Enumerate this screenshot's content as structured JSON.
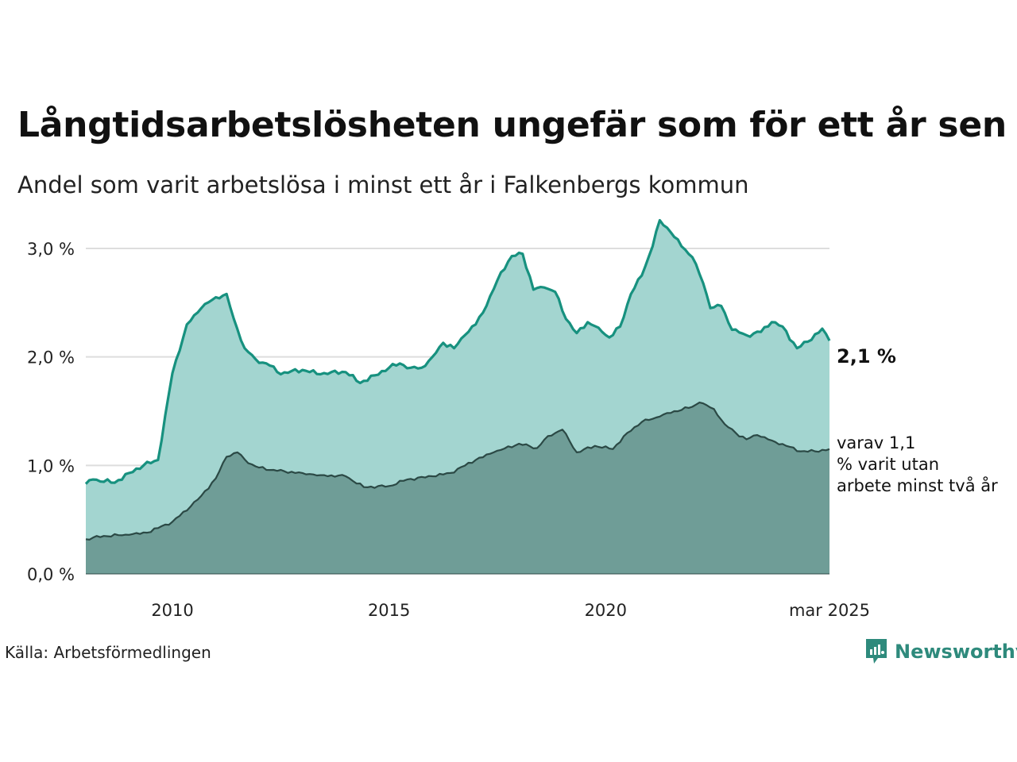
{
  "title": "Långtidsarbetslösheten ungefär som för ett år sen",
  "subtitle": "Andel som varit arbetslösa i minst ett år i Falkenbergs kommun",
  "source": "Källa: Arbetsförmedlingen",
  "brand": "Newsworthy",
  "colors": {
    "upper_fill": "#a3d5d0",
    "upper_line": "#17917f",
    "lower_fill": "#6f9d97",
    "lower_line": "#2b4945",
    "grid": "#dddddd",
    "brand": "#2e8a7c"
  },
  "chart_data": {
    "type": "area",
    "x_start": "2008-01",
    "x_end": "2025-03",
    "x_interval": "month",
    "ylim": [
      0,
      3.3
    ],
    "yticks": [
      0,
      1,
      2,
      3
    ],
    "ytick_labels": [
      "0,0 %",
      "1,0 %",
      "2,0 %",
      "3,0 %"
    ],
    "xtick_labels": [
      "2010",
      "2015",
      "2020",
      "mar 2025"
    ],
    "xtick_dates": [
      "2010-01",
      "2015-01",
      "2020-01",
      "2025-03"
    ],
    "grid": true,
    "series": [
      {
        "end_label": "2,1 %",
        "anchors": [
          [
            "2008-01",
            0.83
          ],
          [
            "2008-03",
            0.87
          ],
          [
            "2008-09",
            0.84
          ],
          [
            "2009-01",
            0.93
          ],
          [
            "2009-05",
            1.0
          ],
          [
            "2009-09",
            1.05
          ],
          [
            "2010-01",
            1.85
          ],
          [
            "2010-05",
            2.3
          ],
          [
            "2010-09",
            2.45
          ],
          [
            "2011-01",
            2.55
          ],
          [
            "2011-04",
            2.58
          ],
          [
            "2011-06",
            2.35
          ],
          [
            "2011-09",
            2.08
          ],
          [
            "2011-12",
            1.98
          ],
          [
            "2012-04",
            1.92
          ],
          [
            "2012-07",
            1.84
          ],
          [
            "2012-10",
            1.87
          ],
          [
            "2013-01",
            1.88
          ],
          [
            "2013-06",
            1.84
          ],
          [
            "2013-09",
            1.86
          ],
          [
            "2014-01",
            1.86
          ],
          [
            "2014-05",
            1.76
          ],
          [
            "2014-09",
            1.83
          ],
          [
            "2015-01",
            1.9
          ],
          [
            "2015-04",
            1.94
          ],
          [
            "2015-07",
            1.9
          ],
          [
            "2015-10",
            1.9
          ],
          [
            "2016-01",
            2.0
          ],
          [
            "2016-04",
            2.13
          ],
          [
            "2016-07",
            2.08
          ],
          [
            "2016-10",
            2.2
          ],
          [
            "2017-01",
            2.3
          ],
          [
            "2017-04",
            2.47
          ],
          [
            "2017-08",
            2.78
          ],
          [
            "2017-11",
            2.93
          ],
          [
            "2018-02",
            2.95
          ],
          [
            "2018-05",
            2.62
          ],
          [
            "2018-08",
            2.64
          ],
          [
            "2018-11",
            2.6
          ],
          [
            "2019-02",
            2.35
          ],
          [
            "2019-05",
            2.22
          ],
          [
            "2019-08",
            2.32
          ],
          [
            "2019-11",
            2.27
          ],
          [
            "2020-02",
            2.18
          ],
          [
            "2020-05",
            2.28
          ],
          [
            "2020-08",
            2.58
          ],
          [
            "2020-11",
            2.75
          ],
          [
            "2021-02",
            3.02
          ],
          [
            "2021-04",
            3.26
          ],
          [
            "2021-07",
            3.15
          ],
          [
            "2021-10",
            3.02
          ],
          [
            "2022-01",
            2.92
          ],
          [
            "2022-04",
            2.68
          ],
          [
            "2022-06",
            2.45
          ],
          [
            "2022-09",
            2.47
          ],
          [
            "2022-12",
            2.25
          ],
          [
            "2023-04",
            2.2
          ],
          [
            "2023-08",
            2.23
          ],
          [
            "2023-11",
            2.32
          ],
          [
            "2024-02",
            2.28
          ],
          [
            "2024-06",
            2.08
          ],
          [
            "2024-09",
            2.14
          ],
          [
            "2025-01",
            2.26
          ],
          [
            "2025-03",
            2.15
          ]
        ]
      },
      {
        "end_label": "varav 1,1 % varit utan arbete minst två år",
        "anchors": [
          [
            "2008-01",
            0.32
          ],
          [
            "2008-06",
            0.35
          ],
          [
            "2009-01",
            0.36
          ],
          [
            "2009-06",
            0.38
          ],
          [
            "2010-01",
            0.48
          ],
          [
            "2010-06",
            0.62
          ],
          [
            "2010-09",
            0.72
          ],
          [
            "2011-01",
            0.88
          ],
          [
            "2011-04",
            1.08
          ],
          [
            "2011-07",
            1.12
          ],
          [
            "2011-10",
            1.02
          ],
          [
            "2012-01",
            0.98
          ],
          [
            "2012-06",
            0.95
          ],
          [
            "2013-01",
            0.93
          ],
          [
            "2013-06",
            0.91
          ],
          [
            "2014-01",
            0.9
          ],
          [
            "2014-06",
            0.8
          ],
          [
            "2015-01",
            0.81
          ],
          [
            "2015-06",
            0.87
          ],
          [
            "2016-01",
            0.9
          ],
          [
            "2016-06",
            0.93
          ],
          [
            "2017-01",
            1.05
          ],
          [
            "2017-06",
            1.12
          ],
          [
            "2018-01",
            1.2
          ],
          [
            "2018-06",
            1.16
          ],
          [
            "2018-09",
            1.27
          ],
          [
            "2019-01",
            1.33
          ],
          [
            "2019-05",
            1.12
          ],
          [
            "2019-10",
            1.18
          ],
          [
            "2020-03",
            1.15
          ],
          [
            "2020-07",
            1.3
          ],
          [
            "2020-11",
            1.4
          ],
          [
            "2021-04",
            1.45
          ],
          [
            "2021-08",
            1.5
          ],
          [
            "2022-01",
            1.54
          ],
          [
            "2022-03",
            1.58
          ],
          [
            "2022-07",
            1.52
          ],
          [
            "2022-10",
            1.38
          ],
          [
            "2023-01",
            1.3
          ],
          [
            "2023-04",
            1.24
          ],
          [
            "2023-07",
            1.28
          ],
          [
            "2023-11",
            1.23
          ],
          [
            "2024-03",
            1.18
          ],
          [
            "2024-07",
            1.13
          ],
          [
            "2024-11",
            1.13
          ],
          [
            "2025-03",
            1.15
          ]
        ]
      }
    ]
  }
}
